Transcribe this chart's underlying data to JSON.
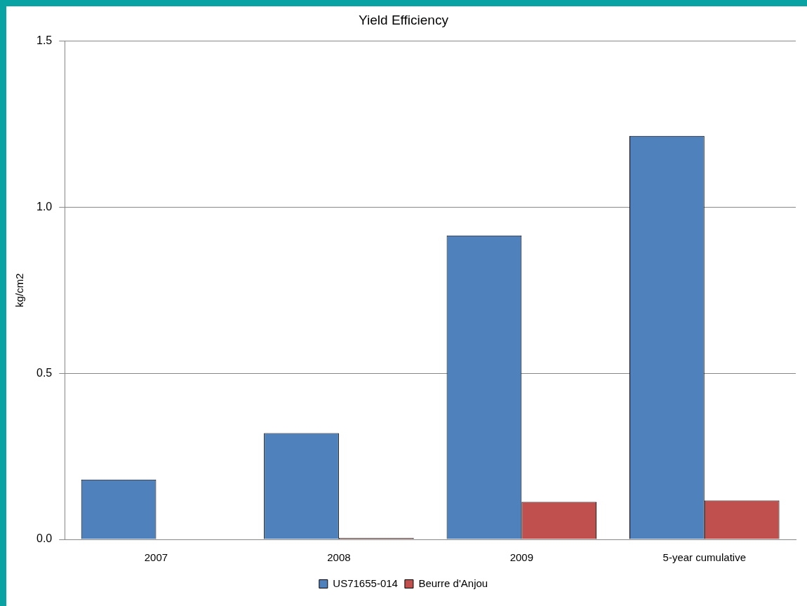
{
  "chart_data": {
    "type": "bar",
    "title": "Yield Efficiency",
    "ylabel": "kg/cm2",
    "categories": [
      "2007",
      "2008",
      "2009",
      "5-year cumulative"
    ],
    "series": [
      {
        "name": "US71655-014",
        "color": "#4f81bd",
        "values": [
          0.18,
          0.32,
          0.915,
          1.215
        ]
      },
      {
        "name": "Beurre d'Anjou",
        "color": "#c0504d",
        "values": [
          0,
          0.004,
          0.113,
          0.117
        ]
      }
    ],
    "ylim": [
      0,
      1.5
    ],
    "yticks": [
      {
        "value": 0,
        "label": "0.0"
      },
      {
        "value": 0.5,
        "label": "0.5"
      },
      {
        "value": 1,
        "label": "1.0"
      },
      {
        "value": 1.5,
        "label": "1.5"
      }
    ],
    "grid": "y",
    "legend": "bottom"
  }
}
